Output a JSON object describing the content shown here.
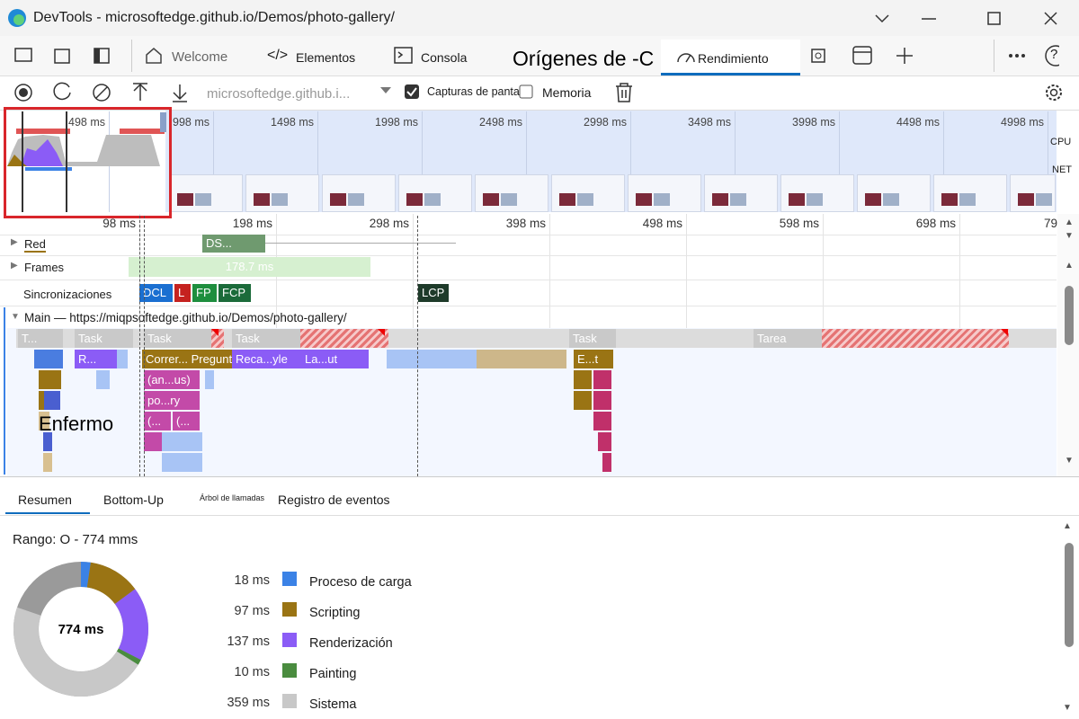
{
  "window": {
    "title": "DevTools - microsoftedge.github.io/Demos/photo-gallery/"
  },
  "tabs": [
    "Welcome",
    "Elementos",
    "Consola",
    "Orígenes de -C",
    "Rendimiento"
  ],
  "toolbar": {
    "url": "microsoftedge.github.i...",
    "screenshots": "Capturas de pantalla",
    "memory": "Memoria"
  },
  "overview": {
    "ticks": [
      "498 ms",
      "998 ms",
      "1498 ms",
      "1998 ms",
      "2498 ms",
      "2998 ms",
      "3498 ms",
      "3998 ms",
      "4498 ms",
      "4998 ms"
    ],
    "cpu": "CPU",
    "net": "NET"
  },
  "timeline": {
    "ticks": [
      "98 ms",
      "198 ms",
      "298 ms",
      "398 ms",
      "498 ms",
      "598 ms",
      "698 ms",
      "79"
    ],
    "tracks": {
      "network": "Red",
      "network_item": "DS...",
      "frames": "Frames",
      "frames_item": "178.7 ms",
      "timings": "Sincronizaciones",
      "markers": [
        "DCL",
        "L",
        "FP",
        "FCP",
        "LCP"
      ],
      "main": "Main — https://miqpsoftedge.github.io/Demos/photo-gallery/"
    },
    "flame": [
      "T...",
      "Task",
      "Task",
      "Task",
      "Task",
      "Tarea",
      "R...",
      "Correr... Pregunta",
      "Reca...yle",
      "La...ut",
      "E...t",
      "(an...us)",
      "po...ry",
      "(...",
      "(...",
      "Enfermo"
    ]
  },
  "bottom_tabs": [
    "Resumen",
    "Bottom-Up",
    "Árbol de llamadas",
    "Registro de eventos"
  ],
  "summary": {
    "range": "Rango: O - 774 mms",
    "total": 774,
    "total_label": "774 ms",
    "items": [
      {
        "label": "Proceso de carga",
        "value": 18,
        "value_label": "18 ms",
        "color": "#3b82e6"
      },
      {
        "label": "Scripting",
        "value": 97,
        "value_label": "97 ms",
        "color": "#9a7414"
      },
      {
        "label": "Renderización",
        "value": 137,
        "value_label": "137 ms",
        "color": "#8b5cf6"
      },
      {
        "label": "Painting",
        "value": 10,
        "value_label": "10 ms",
        "color": "#4a8c3f"
      },
      {
        "label": "Sistema",
        "value": 359,
        "value_label": "359 ms",
        "color": "#c8c8c8"
      }
    ]
  }
}
